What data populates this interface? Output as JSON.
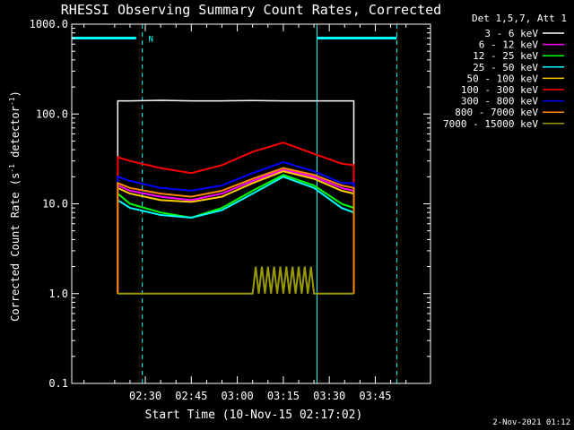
{
  "chart_data": {
    "type": "line",
    "title": "RHESSI Observing Summary Count Rates, Corrected",
    "xlabel": "Start Time (10-Nov-15 02:17:02)",
    "ylabel_main": "Corrected Count Rate (s",
    "ylabel_sup1": "-1",
    "ylabel_mid": " detector",
    "ylabel_sup2": "-1",
    "ylabel_end": ")",
    "yscale": "log",
    "ylim": [
      0.1,
      1000
    ],
    "xlim_minutes": [
      -9,
      108
    ],
    "y_ticks": [
      "0.1",
      "1.0",
      "10.0",
      "100.0",
      "1000.0"
    ],
    "x_ticks": [
      {
        "label": "02:30",
        "minutes": 15
      },
      {
        "label": "02:45",
        "minutes": 30
      },
      {
        "label": "03:00",
        "minutes": 45
      },
      {
        "label": "03:15",
        "minutes": 60
      },
      {
        "label": "03:30",
        "minutes": 75
      },
      {
        "label": "03:45",
        "minutes": 90
      }
    ],
    "legend_title": "Det 1,5,7, Att 1",
    "legend_position": "outside right",
    "series": [
      {
        "name": "3 - 6 keV",
        "color": "#ffffff",
        "t": [
          6,
          10,
          20,
          30,
          40,
          50,
          60,
          70,
          79,
          83
        ],
        "values": [
          140,
          140,
          142,
          140,
          140,
          141,
          140,
          140,
          140,
          140
        ]
      },
      {
        "name": "6 - 12 keV",
        "color": "#ff00ff",
        "t": [
          6,
          10,
          20,
          30,
          40,
          50,
          60,
          70,
          79,
          83
        ],
        "values": [
          16,
          14,
          12,
          11,
          13,
          18,
          24,
          20,
          15,
          14
        ]
      },
      {
        "name": "12 - 25 keV",
        "color": "#00ff00",
        "t": [
          6,
          10,
          20,
          30,
          40,
          50,
          60,
          70,
          79,
          83
        ],
        "values": [
          13,
          10,
          8,
          7,
          9,
          14,
          21,
          16,
          10,
          9
        ]
      },
      {
        "name": "25 - 50 keV",
        "color": "#00ffff",
        "t": [
          6,
          10,
          20,
          30,
          40,
          50,
          60,
          70,
          79,
          83
        ],
        "values": [
          11,
          9,
          7.5,
          7,
          8.5,
          13,
          20,
          15,
          9,
          8
        ]
      },
      {
        "name": "50 - 100 keV",
        "color": "#ffcc00",
        "t": [
          6,
          10,
          20,
          30,
          40,
          50,
          60,
          70,
          79,
          83
        ],
        "values": [
          15,
          13,
          11,
          10.5,
          12,
          17,
          23,
          19,
          14,
          13
        ]
      },
      {
        "name": "100 - 300 keV",
        "color": "#ff0000",
        "t": [
          6,
          10,
          20,
          30,
          40,
          50,
          60,
          70,
          79,
          83
        ],
        "values": [
          33,
          30,
          25,
          22,
          27,
          38,
          48,
          36,
          28,
          27
        ]
      },
      {
        "name": "300 - 800 keV",
        "color": "#0000ff",
        "t": [
          6,
          10,
          20,
          30,
          40,
          50,
          60,
          70,
          79,
          83
        ],
        "values": [
          20,
          18,
          15,
          14,
          16,
          22,
          29,
          23,
          17,
          17
        ]
      },
      {
        "name": "800 - 7000 keV",
        "color": "#ff8800",
        "t": [
          6,
          10,
          20,
          30,
          40,
          50,
          60,
          70,
          79,
          83
        ],
        "values": [
          17,
          15,
          13,
          12,
          14,
          19,
          25,
          21,
          16,
          15
        ]
      },
      {
        "name": "7000 - 15000 keV",
        "color": "#999900",
        "t": [
          6,
          50,
          51,
          52,
          53,
          54,
          55,
          56,
          57,
          58,
          59,
          60,
          61,
          62,
          63,
          64,
          65,
          66,
          67,
          68,
          69,
          70,
          83
        ],
        "values": [
          1,
          1,
          2,
          1,
          2,
          1,
          2,
          1,
          2,
          1,
          2,
          1,
          2,
          1,
          2,
          1,
          2,
          1,
          2,
          1,
          2,
          1,
          1
        ]
      }
    ],
    "overlays": {
      "cyan_line_color": "#00ffff",
      "solid_verticals_minutes": [
        -9,
        71
      ],
      "dashed_verticals_minutes": [
        14,
        97
      ],
      "top_bars_minutes": [
        [
          -9,
          12
        ],
        [
          71,
          97
        ]
      ],
      "top_bar_value": 700,
      "marker_label": "N",
      "marker_minutes": 16
    },
    "footer_timestamp": "2-Nov-2021 01:12"
  }
}
